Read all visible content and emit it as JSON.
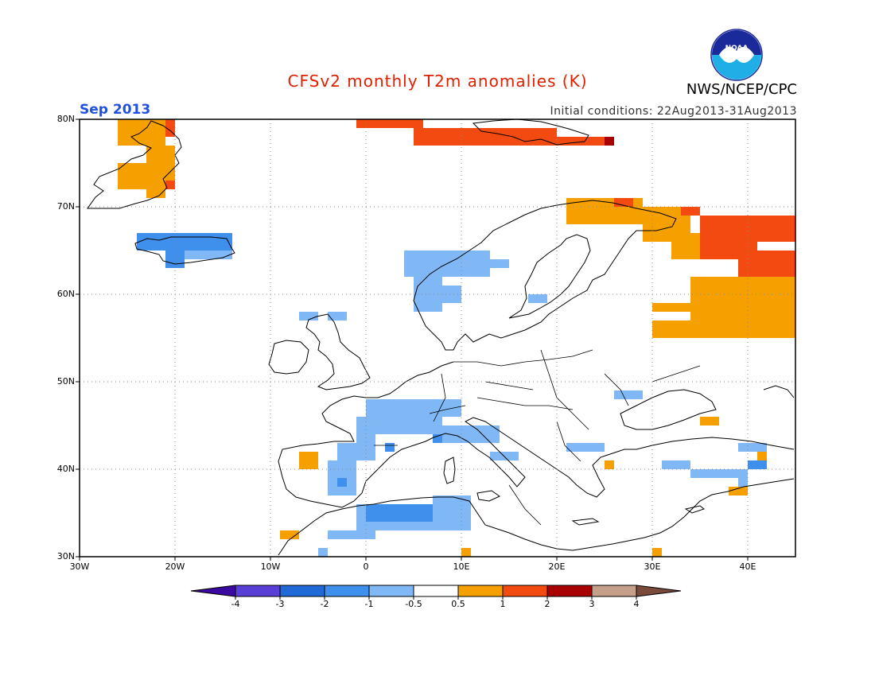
{
  "header": {
    "title": "CFSv2 monthly T2m anomalies (K)",
    "org": "NWS/NCEP/CPC",
    "month": "Sep 2013",
    "initial_conditions": "Initial conditions: 22Aug2013-31Aug2013",
    "logo_text": "NOAA"
  },
  "colors": {
    "title": "#e02000",
    "month": "#2050e0",
    "land": "#ffffff",
    "coast": "#000000"
  },
  "map": {
    "lon_range": [
      -30,
      45
    ],
    "lat_range": [
      30,
      80
    ],
    "lon_ticks": [
      "30W",
      "20W",
      "10W",
      "0",
      "10E",
      "20E",
      "30E",
      "40E"
    ],
    "lat_ticks": [
      "80N",
      "70N",
      "60N",
      "50N",
      "40N",
      "30N"
    ],
    "grid": true
  },
  "legend": {
    "bins": [
      {
        "color": "#3a0aa0"
      },
      {
        "color": "#5a3fd6"
      },
      {
        "color": "#1f6ad6"
      },
      {
        "color": "#3f8fec"
      },
      {
        "color": "#7fb8f5"
      },
      {
        "color": "#ffffff"
      },
      {
        "color": "#f6a000"
      },
      {
        "color": "#f24a10"
      },
      {
        "color": "#a80000"
      },
      {
        "color": "#c4a08a"
      },
      {
        "color": "#7a4a3a"
      }
    ],
    "labels": [
      "-4",
      "-3",
      "-2",
      "-1",
      "-0.5",
      "0.5",
      "1",
      "2",
      "3",
      "4"
    ]
  },
  "anomalies": [
    {
      "lon": [
        -26,
        -21
      ],
      "lat": [
        77,
        80
      ],
      "class": 6
    },
    {
      "lon": [
        -21,
        -20
      ],
      "lat": [
        78,
        80
      ],
      "class": 7
    },
    {
      "lon": [
        -23,
        -20
      ],
      "lat": [
        73,
        77
      ],
      "class": 6
    },
    {
      "lon": [
        -26,
        -21
      ],
      "lat": [
        72,
        75
      ],
      "class": 6
    },
    {
      "lon": [
        -23,
        -21
      ],
      "lat": [
        71,
        72
      ],
      "class": 6
    },
    {
      "lon": [
        -21,
        -20
      ],
      "lat": [
        72,
        73
      ],
      "class": 7
    },
    {
      "lon": [
        -24,
        -14
      ],
      "lat": [
        65,
        67
      ],
      "class": 3
    },
    {
      "lon": [
        -19,
        -14
      ],
      "lat": [
        64,
        65
      ],
      "class": 4
    },
    {
      "lon": [
        -21,
        -19
      ],
      "lat": [
        63,
        65
      ],
      "class": 3
    },
    {
      "lon": [
        -1,
        6
      ],
      "lat": [
        79,
        80
      ],
      "class": 7
    },
    {
      "lon": [
        5,
        20
      ],
      "lat": [
        77,
        79
      ],
      "class": 7
    },
    {
      "lon": [
        20,
        25
      ],
      "lat": [
        77,
        78
      ],
      "class": 7
    },
    {
      "lon": [
        25,
        26
      ],
      "lat": [
        77,
        78
      ],
      "class": 8
    },
    {
      "lon": [
        21,
        29
      ],
      "lat": [
        68,
        71
      ],
      "class": 6
    },
    {
      "lon": [
        29,
        34
      ],
      "lat": [
        66,
        70
      ],
      "class": 6
    },
    {
      "lon": [
        26,
        28
      ],
      "lat": [
        70,
        71
      ],
      "class": 7
    },
    {
      "lon": [
        33,
        35
      ],
      "lat": [
        69,
        70
      ],
      "class": 7
    },
    {
      "lon": [
        35,
        45
      ],
      "lat": [
        66,
        69
      ],
      "class": 7
    },
    {
      "lon": [
        32,
        35
      ],
      "lat": [
        64,
        67
      ],
      "class": 6
    },
    {
      "lon": [
        35,
        41
      ],
      "lat": [
        64,
        66
      ],
      "class": 7
    },
    {
      "lon": [
        39,
        45
      ],
      "lat": [
        62,
        65
      ],
      "class": 7
    },
    {
      "lon": [
        34,
        45
      ],
      "lat": [
        55,
        62
      ],
      "class": 6
    },
    {
      "lon": [
        30,
        34
      ],
      "lat": [
        58,
        59
      ],
      "class": 6
    },
    {
      "lon": [
        30,
        35
      ],
      "lat": [
        55,
        57
      ],
      "class": 6
    },
    {
      "lon": [
        4,
        13
      ],
      "lat": [
        62,
        65
      ],
      "class": 4
    },
    {
      "lon": [
        5,
        8
      ],
      "lat": [
        58,
        62
      ],
      "class": 4
    },
    {
      "lon": [
        8,
        10
      ],
      "lat": [
        59,
        61
      ],
      "class": 4
    },
    {
      "lon": [
        13,
        15
      ],
      "lat": [
        63,
        64
      ],
      "class": 4
    },
    {
      "lon": [
        17,
        19
      ],
      "lat": [
        59,
        60
      ],
      "class": 4
    },
    {
      "lon": [
        -7,
        -5
      ],
      "lat": [
        57,
        58
      ],
      "class": 4
    },
    {
      "lon": [
        -4,
        -2
      ],
      "lat": [
        57,
        58
      ],
      "class": 4
    },
    {
      "lon": [
        0,
        8
      ],
      "lat": [
        44,
        48
      ],
      "class": 4
    },
    {
      "lon": [
        -1,
        1
      ],
      "lat": [
        43,
        46
      ],
      "class": 4
    },
    {
      "lon": [
        8,
        10
      ],
      "lat": [
        46,
        48
      ],
      "class": 4
    },
    {
      "lon": [
        8,
        14
      ],
      "lat": [
        43,
        45
      ],
      "class": 4
    },
    {
      "lon": [
        13,
        16
      ],
      "lat": [
        41,
        42
      ],
      "class": 4
    },
    {
      "lon": [
        -3,
        1
      ],
      "lat": [
        41,
        43
      ],
      "class": 4
    },
    {
      "lon": [
        2,
        3
      ],
      "lat": [
        42,
        43
      ],
      "class": 3
    },
    {
      "lon": [
        7,
        8
      ],
      "lat": [
        43,
        44
      ],
      "class": 3
    },
    {
      "lon": [
        -4,
        -1
      ],
      "lat": [
        37,
        41
      ],
      "class": 4
    },
    {
      "lon": [
        -3,
        -2
      ],
      "lat": [
        38,
        39
      ],
      "class": 3
    },
    {
      "lon": [
        -1,
        10
      ],
      "lat": [
        33,
        36
      ],
      "class": 4
    },
    {
      "lon": [
        0,
        7
      ],
      "lat": [
        34,
        36
      ],
      "class": 3
    },
    {
      "lon": [
        7,
        11
      ],
      "lat": [
        33,
        37
      ],
      "class": 4
    },
    {
      "lon": [
        -2,
        1
      ],
      "lat": [
        32,
        33
      ],
      "class": 4
    },
    {
      "lon": [
        -4,
        -2
      ],
      "lat": [
        32,
        33
      ],
      "class": 4
    },
    {
      "lon": [
        -5,
        -4
      ],
      "lat": [
        30,
        31
      ],
      "class": 4
    },
    {
      "lon": [
        22,
        25
      ],
      "lat": [
        42,
        43
      ],
      "class": 4
    },
    {
      "lon": [
        21,
        23
      ],
      "lat": [
        42,
        43
      ],
      "class": 4
    },
    {
      "lon": [
        26,
        29
      ],
      "lat": [
        48,
        49
      ],
      "class": 4
    },
    {
      "lon": [
        31,
        34
      ],
      "lat": [
        40,
        41
      ],
      "class": 4
    },
    {
      "lon": [
        34,
        40
      ],
      "lat": [
        39,
        40
      ],
      "class": 4
    },
    {
      "lon": [
        40,
        42
      ],
      "lat": [
        40,
        41
      ],
      "class": 3
    },
    {
      "lon": [
        39,
        42
      ],
      "lat": [
        42,
        43
      ],
      "class": 4
    },
    {
      "lon": [
        39,
        40
      ],
      "lat": [
        38,
        39
      ],
      "class": 4
    },
    {
      "lon": [
        -7,
        -5
      ],
      "lat": [
        40,
        42
      ],
      "class": 6
    },
    {
      "lon": [
        -9,
        -7
      ],
      "lat": [
        32,
        33
      ],
      "class": 6
    },
    {
      "lon": [
        10,
        11
      ],
      "lat": [
        30,
        31
      ],
      "class": 6
    },
    {
      "lon": [
        30,
        31
      ],
      "lat": [
        30,
        31
      ],
      "class": 6
    },
    {
      "lon": [
        25,
        26
      ],
      "lat": [
        40,
        41
      ],
      "class": 6
    },
    {
      "lon": [
        38,
        40
      ],
      "lat": [
        37,
        38
      ],
      "class": 6
    },
    {
      "lon": [
        41,
        42
      ],
      "lat": [
        41,
        42
      ],
      "class": 6
    },
    {
      "lon": [
        35,
        37
      ],
      "lat": [
        45,
        46
      ],
      "class": 6
    }
  ]
}
